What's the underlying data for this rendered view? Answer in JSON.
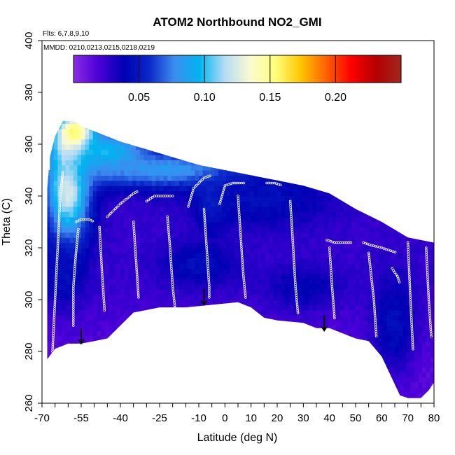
{
  "chart_data": {
    "type": "heatmap",
    "title": "ATOM2 Northbound NO2_GMI",
    "annotations": [
      "Flts: 6,7,8,9,10",
      "MMDD: 0210,0213,0215,0218,0219"
    ],
    "xlabel": "Latitude (deg N)",
    "ylabel": "Theta (C)",
    "xlim": [
      -70,
      80
    ],
    "ylim": [
      260,
      400
    ],
    "x_ticks": [
      -70,
      -65,
      -60,
      -55,
      -50,
      -45,
      -40,
      -35,
      -30,
      -25,
      -20,
      -15,
      -10,
      -5,
      0,
      5,
      10,
      15,
      20,
      25,
      30,
      35,
      40,
      45,
      50,
      55,
      60,
      65,
      70,
      75,
      80
    ],
    "x_tick_labels": [
      "-70",
      "",
      "-55",
      "-40",
      "-25",
      "-10",
      "0",
      "10",
      "20",
      "30",
      "40",
      "50",
      "60",
      "70",
      "80"
    ],
    "x_label_values": [
      -70,
      -55,
      -40,
      -25,
      -10,
      0,
      10,
      20,
      30,
      40,
      50,
      60,
      70,
      80
    ],
    "y_ticks": [
      260,
      280,
      300,
      320,
      340,
      360,
      380,
      400
    ],
    "y_tick_labels": [
      "260",
      "280",
      "300",
      "320",
      "340",
      "360",
      "380",
      "400"
    ],
    "colorbar": {
      "range": [
        0,
        0.25
      ],
      "ticks": [
        0.05,
        0.1,
        0.15,
        0.2
      ],
      "tick_labels": [
        "0.05",
        "0.10",
        "0.15",
        "0.20"
      ],
      "colors": [
        "#8a2be2",
        "#4b00d8",
        "#0000b4",
        "#0a28c8",
        "#3c8cf0",
        "#00b4f0",
        "#b4dcf5",
        "#fafad2",
        "#ffff7d",
        "#ffc800",
        "#ff6400",
        "#ff0000",
        "#b40000",
        "#a0281e"
      ]
    },
    "upper_boundary": [
      [
        -68,
        343
      ],
      [
        -67,
        355
      ],
      [
        -65,
        363
      ],
      [
        -62,
        369
      ],
      [
        -58,
        369
      ],
      [
        -55,
        367
      ],
      [
        -50,
        365
      ],
      [
        -45,
        363
      ],
      [
        -40,
        361
      ],
      [
        -30,
        358
      ],
      [
        -20,
        355
      ],
      [
        -10,
        352
      ],
      [
        0,
        350
      ],
      [
        10,
        348
      ],
      [
        20,
        346
      ],
      [
        30,
        344
      ],
      [
        40,
        341
      ],
      [
        50,
        335
      ],
      [
        60,
        330
      ],
      [
        70,
        324
      ],
      [
        80,
        322
      ]
    ],
    "lower_boundary": [
      [
        -68,
        277
      ],
      [
        -65,
        281
      ],
      [
        -60,
        283
      ],
      [
        -55,
        283
      ],
      [
        -50,
        284
      ],
      [
        -45,
        285
      ],
      [
        -40,
        290
      ],
      [
        -35,
        295
      ],
      [
        -25,
        297
      ],
      [
        -15,
        297
      ],
      [
        -5,
        298
      ],
      [
        5,
        299
      ],
      [
        10,
        297
      ],
      [
        15,
        293
      ],
      [
        20,
        292
      ],
      [
        30,
        291
      ],
      [
        35,
        289
      ],
      [
        40,
        289
      ],
      [
        45,
        287
      ],
      [
        50,
        285
      ],
      [
        55,
        284
      ],
      [
        60,
        278
      ],
      [
        67,
        263
      ],
      [
        70,
        262
      ],
      [
        72,
        262
      ],
      [
        75,
        262
      ],
      [
        78,
        265
      ],
      [
        80,
        268
      ]
    ],
    "field_features": [
      {
        "x": -60,
        "y": 345,
        "sigma_x": 6,
        "sigma_y": 17,
        "value": 0.13
      },
      {
        "x": -57,
        "y": 363,
        "sigma_x": 5,
        "sigma_y": 6,
        "value": 0.18
      },
      {
        "x": -45,
        "y": 357,
        "sigma_x": 12,
        "sigma_y": 6,
        "value": 0.1
      },
      {
        "x": -20,
        "y": 350,
        "sigma_x": 25,
        "sigma_y": 5,
        "value": 0.085
      },
      {
        "x": -5,
        "y": 338,
        "sigma_x": 4,
        "sigma_y": 7,
        "value": 0.06
      },
      {
        "x": 15,
        "y": 339,
        "sigma_x": 18,
        "sigma_y": 8,
        "value": 0.045
      },
      {
        "x": -62,
        "y": 310,
        "sigma_x": 5,
        "sigma_y": 9,
        "value": 0.045
      },
      {
        "x": -10,
        "y": 314,
        "sigma_x": 10,
        "sigma_y": 6,
        "value": 0.045
      },
      {
        "x": 30,
        "y": 305,
        "sigma_x": 10,
        "sigma_y": 6,
        "value": 0.04
      },
      {
        "x": 65,
        "y": 290,
        "sigma_x": 6,
        "sigma_y": 14,
        "value": 0.045
      }
    ],
    "background_value": 0.025,
    "low_layer_value": 0.015,
    "flight_tracks": [
      [
        [
          -66,
          280
        ],
        [
          -65,
          300
        ],
        [
          -64,
          320
        ],
        [
          -63,
          340
        ],
        [
          -62,
          350
        ]
      ],
      [
        [
          -57,
          330
        ],
        [
          -55,
          331
        ],
        [
          -52,
          331
        ],
        [
          -50,
          330
        ]
      ],
      [
        [
          -58,
          290
        ],
        [
          -58,
          305
        ],
        [
          -57,
          318
        ],
        [
          -56,
          328
        ]
      ],
      [
        [
          -45,
          332
        ],
        [
          -40,
          337
        ],
        [
          -35,
          341
        ],
        [
          -33,
          342
        ]
      ],
      [
        [
          -30,
          338
        ],
        [
          -27,
          340
        ],
        [
          -22,
          340
        ],
        [
          -19,
          340
        ]
      ],
      [
        [
          -14,
          336
        ],
        [
          -12,
          343
        ],
        [
          -8,
          347
        ],
        [
          -5,
          348
        ]
      ],
      [
        [
          -2,
          337
        ],
        [
          0,
          344
        ],
        [
          3,
          345
        ],
        [
          8,
          345
        ]
      ],
      [
        [
          16,
          345
        ],
        [
          19,
          345
        ],
        [
          22,
          344
        ]
      ],
      [
        [
          31,
          345
        ],
        [
          35,
          345
        ]
      ],
      [
        [
          39,
          323
        ],
        [
          42,
          322
        ],
        [
          45,
          322
        ],
        [
          49,
          322
        ]
      ],
      [
        [
          53,
          322
        ],
        [
          56,
          321
        ],
        [
          60,
          320
        ],
        [
          66,
          318
        ]
      ],
      [
        [
          64,
          312
        ],
        [
          66,
          309
        ],
        [
          67,
          306
        ]
      ],
      [
        [
          -22,
          332
        ],
        [
          -21,
          320
        ],
        [
          -20,
          305
        ],
        [
          -19,
          296
        ]
      ],
      [
        [
          -8,
          335
        ],
        [
          -7,
          320
        ],
        [
          -6,
          305
        ],
        [
          -6,
          300
        ]
      ],
      [
        [
          5,
          340
        ],
        [
          6,
          325
        ],
        [
          7,
          310
        ],
        [
          8,
          300
        ]
      ],
      [
        [
          25,
          338
        ],
        [
          26,
          322
        ],
        [
          27,
          305
        ],
        [
          28,
          294
        ]
      ],
      [
        [
          40,
          320
        ],
        [
          41,
          305
        ],
        [
          42,
          292
        ]
      ],
      [
        [
          55,
          318
        ],
        [
          57,
          300
        ],
        [
          58,
          285
        ]
      ],
      [
        [
          70,
          322
        ],
        [
          71,
          300
        ],
        [
          72,
          280
        ]
      ],
      [
        [
          77,
          320
        ],
        [
          78,
          300
        ],
        [
          79,
          285
        ]
      ],
      [
        [
          -35,
          330
        ],
        [
          -34,
          315
        ],
        [
          -33,
          300
        ]
      ],
      [
        [
          -48,
          328
        ],
        [
          -47,
          310
        ],
        [
          -46,
          295
        ]
      ]
    ],
    "arrows": [
      [
        -55,
        289,
        283
      ],
      [
        -8,
        304,
        298
      ],
      [
        38,
        294,
        288
      ]
    ]
  }
}
